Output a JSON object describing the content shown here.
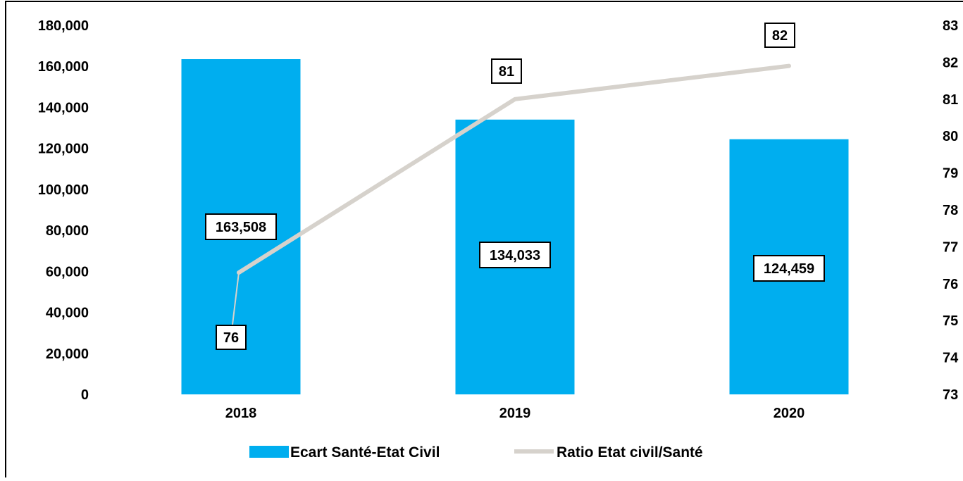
{
  "chart_data": {
    "type": "bar",
    "categories": [
      "2018",
      "2019",
      "2020"
    ],
    "series": [
      {
        "name": "Ecart Santé-Etat Civil",
        "type": "bar",
        "axis": "left",
        "values": [
          163508,
          134033,
          124459
        ],
        "labels": [
          "163,508",
          "134,033",
          "124,459"
        ]
      },
      {
        "name": "Ratio Etat civil/Santé",
        "type": "line",
        "axis": "right",
        "values": [
          76.3,
          81.0,
          81.9
        ],
        "labels": [
          "76",
          "81",
          "82"
        ]
      }
    ],
    "y_left": {
      "ticks": [
        "0",
        "20,000",
        "40,000",
        "60,000",
        "80,000",
        "100,000",
        "120,000",
        "140,000",
        "160,000",
        "180,000"
      ],
      "ylim": [
        0,
        180000
      ]
    },
    "y_right": {
      "ticks": [
        "73",
        "74",
        "75",
        "76",
        "77",
        "78",
        "79",
        "80",
        "81",
        "82",
        "83"
      ],
      "ylim": [
        73,
        83
      ]
    },
    "colors": {
      "bar": "#00AEEF",
      "line": "#D6D2CC"
    },
    "grid": false,
    "legend_position": "bottom"
  }
}
